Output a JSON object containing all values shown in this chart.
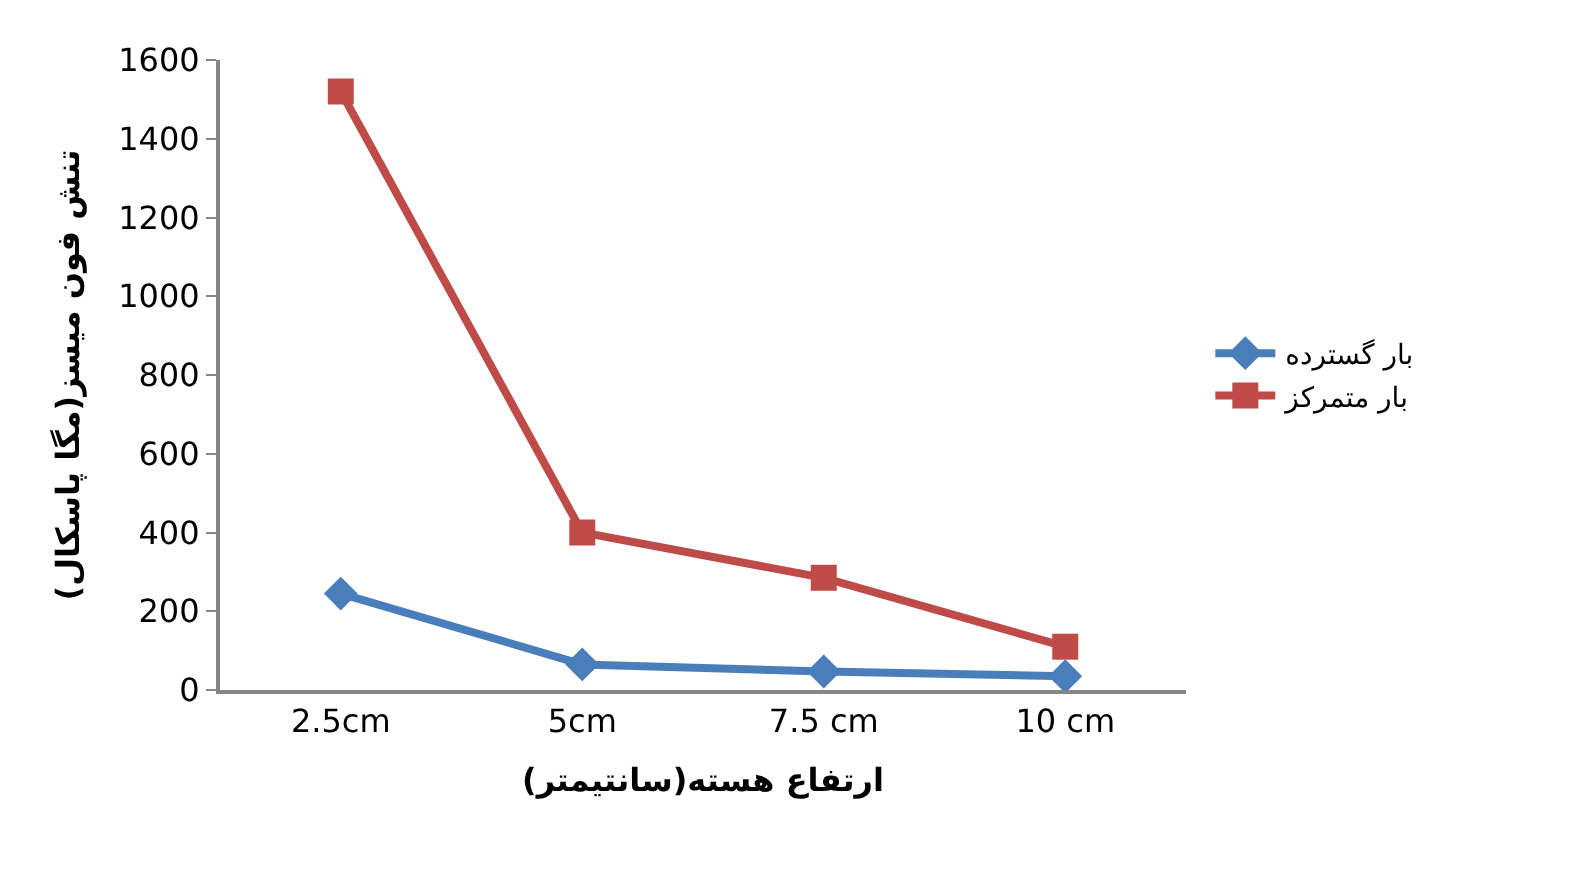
{
  "chart_data": {
    "type": "line",
    "xlabel": "ارتفاع هسته(سانتیمتر)",
    "ylabel": "تنش فون میسز(مگا پاسکال)",
    "categories": [
      "2.5cm",
      "5cm",
      "7.5 cm",
      "10 cm"
    ],
    "series": [
      {
        "name": "بار گسترده",
        "color": "#4a7ebb",
        "marker": "diamond",
        "values": [
          245,
          65,
          47,
          35
        ]
      },
      {
        "name": "بار متمرکز",
        "color": "#be4b48",
        "marker": "square",
        "values": [
          1520,
          400,
          285,
          110
        ]
      }
    ],
    "ylim": [
      0,
      1600
    ],
    "yticks": [
      0,
      200,
      400,
      600,
      800,
      1000,
      1200,
      1400,
      1600
    ],
    "legend": "right"
  }
}
